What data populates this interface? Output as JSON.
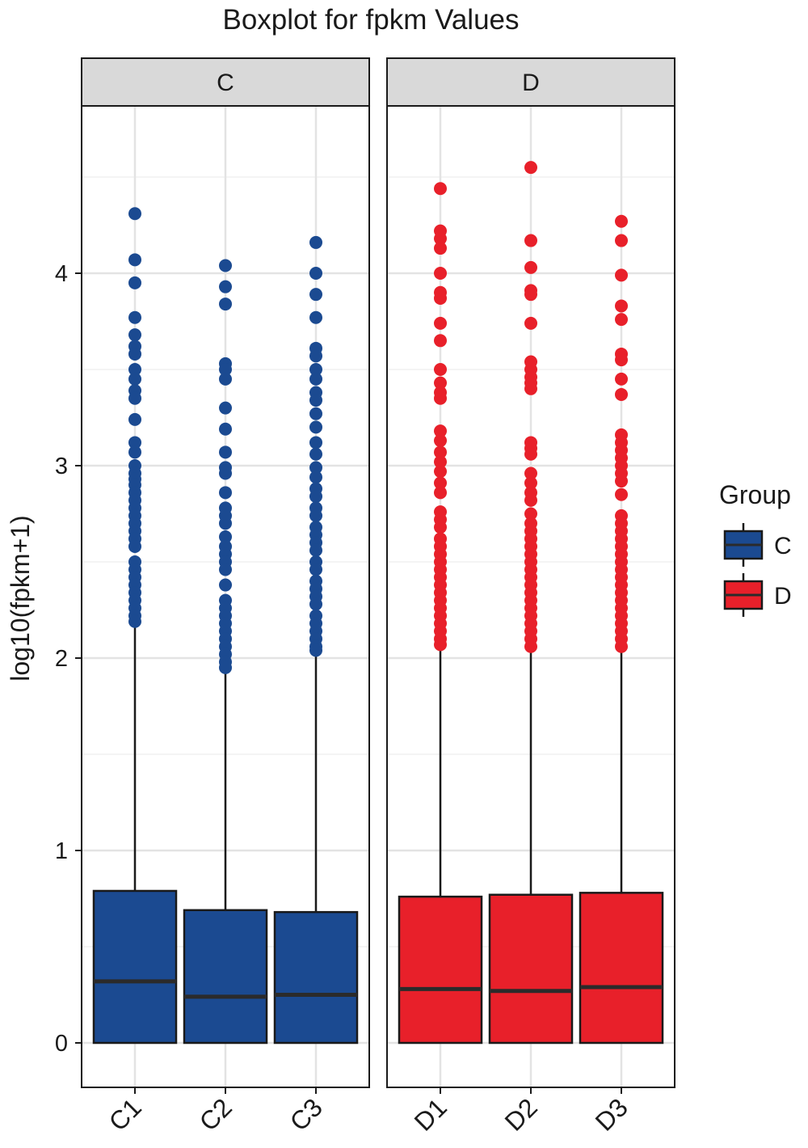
{
  "chart_data": {
    "type": "boxplot",
    "title": "Boxplot for fpkm Values",
    "ylabel": "log10(fpkm+1)",
    "xlabel": "",
    "ylim": [
      -0.2,
      4.85
    ],
    "yticks": [
      0,
      1,
      2,
      3,
      4
    ],
    "grid": true,
    "legend": {
      "title": "Group",
      "position": "right",
      "entries": [
        {
          "label": "C",
          "color": "#1b4a91"
        },
        {
          "label": "D",
          "color": "#e8202a"
        }
      ]
    },
    "panels": [
      {
        "strip": "C",
        "color": "#1b4a91",
        "samples": [
          {
            "name": "C1",
            "q1": 0,
            "median": 0.32,
            "q3": 0.79,
            "whisker_low": 0,
            "whisker_high": 2.17,
            "outliers": [
              4.31,
              4.07,
              3.95,
              3.77,
              3.68,
              3.62,
              3.58,
              3.5,
              3.45,
              3.39,
              3.35,
              3.24,
              3.12,
              3.07,
              3.0,
              2.96,
              2.93,
              2.9,
              2.86,
              2.82,
              2.78,
              2.74,
              2.7,
              2.66,
              2.62,
              2.58,
              2.5,
              2.46,
              2.42,
              2.38,
              2.34,
              2.3,
              2.26,
              2.22,
              2.19
            ]
          },
          {
            "name": "C2",
            "q1": 0,
            "median": 0.24,
            "q3": 0.69,
            "whisker_low": 0,
            "whisker_high": 1.93,
            "outliers": [
              4.04,
              3.93,
              3.84,
              3.53,
              3.5,
              3.45,
              3.3,
              3.19,
              3.07,
              2.99,
              2.96,
              2.86,
              2.78,
              2.74,
              2.7,
              2.63,
              2.58,
              2.54,
              2.5,
              2.46,
              2.38,
              2.3,
              2.26,
              2.22,
              2.18,
              2.14,
              2.1,
              2.06,
              2.02,
              1.98,
              1.95
            ]
          },
          {
            "name": "C3",
            "q1": 0,
            "median": 0.25,
            "q3": 0.68,
            "whisker_low": 0,
            "whisker_high": 2.03,
            "outliers": [
              4.16,
              4.0,
              3.89,
              3.77,
              3.61,
              3.57,
              3.5,
              3.45,
              3.38,
              3.34,
              3.27,
              3.2,
              3.12,
              3.06,
              2.99,
              2.94,
              2.88,
              2.84,
              2.78,
              2.74,
              2.68,
              2.64,
              2.6,
              2.56,
              2.5,
              2.46,
              2.4,
              2.36,
              2.32,
              2.28,
              2.22,
              2.18,
              2.14,
              2.1,
              2.06,
              2.04
            ]
          }
        ]
      },
      {
        "strip": "D",
        "color": "#e8202a",
        "samples": [
          {
            "name": "D1",
            "q1": 0,
            "median": 0.28,
            "q3": 0.76,
            "whisker_low": 0,
            "whisker_high": 2.05,
            "outliers": [
              4.44,
              4.22,
              4.18,
              4.13,
              4.0,
              3.9,
              3.87,
              3.74,
              3.65,
              3.5,
              3.43,
              3.38,
              3.35,
              3.18,
              3.13,
              3.07,
              3.02,
              2.97,
              2.91,
              2.86,
              2.76,
              2.72,
              2.68,
              2.62,
              2.58,
              2.54,
              2.5,
              2.46,
              2.42,
              2.38,
              2.34,
              2.3,
              2.26,
              2.22,
              2.18,
              2.14,
              2.1,
              2.07
            ]
          },
          {
            "name": "D2",
            "q1": 0,
            "median": 0.27,
            "q3": 0.77,
            "whisker_low": 0,
            "whisker_high": 2.04,
            "outliers": [
              4.55,
              4.17,
              4.03,
              3.91,
              3.89,
              3.74,
              3.54,
              3.5,
              3.46,
              3.43,
              3.4,
              3.12,
              3.09,
              3.06,
              2.96,
              2.91,
              2.86,
              2.82,
              2.75,
              2.7,
              2.66,
              2.62,
              2.58,
              2.54,
              2.5,
              2.46,
              2.42,
              2.38,
              2.34,
              2.3,
              2.26,
              2.22,
              2.18,
              2.14,
              2.1,
              2.06
            ]
          },
          {
            "name": "D3",
            "q1": 0,
            "median": 0.29,
            "q3": 0.78,
            "whisker_low": 0,
            "whisker_high": 2.04,
            "outliers": [
              4.27,
              4.17,
              3.99,
              3.83,
              3.76,
              3.58,
              3.55,
              3.45,
              3.37,
              3.16,
              3.12,
              3.08,
              3.04,
              3.0,
              2.96,
              2.92,
              2.85,
              2.74,
              2.7,
              2.66,
              2.62,
              2.58,
              2.54,
              2.5,
              2.46,
              2.42,
              2.38,
              2.34,
              2.3,
              2.26,
              2.22,
              2.18,
              2.14,
              2.1,
              2.06
            ]
          }
        ]
      }
    ]
  }
}
